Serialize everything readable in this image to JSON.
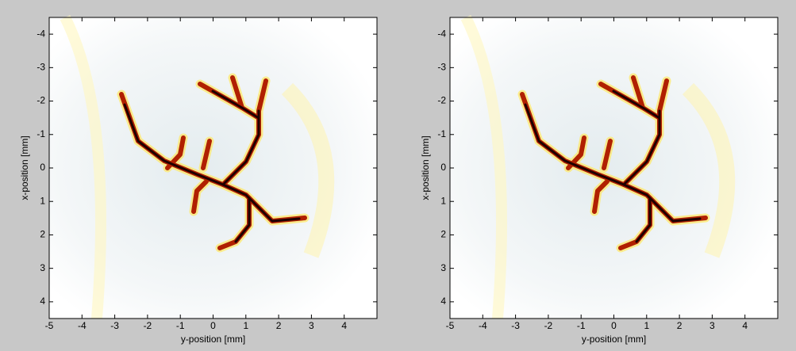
{
  "chart_data": [
    {
      "type": "image",
      "xlabel": "y-position [mm]",
      "ylabel": "x-position [mm]",
      "xlim": [
        -5,
        5
      ],
      "ylim": [
        -4.5,
        4.5
      ],
      "y_reversed": true,
      "xticks": [
        -5,
        -4,
        -3,
        -2,
        -1,
        0,
        1,
        2,
        3,
        4
      ],
      "yticks": [
        -4,
        -3,
        -2,
        -1,
        0,
        1,
        2,
        3,
        4
      ]
    },
    {
      "type": "image",
      "xlabel": "y-position [mm]",
      "ylabel": "x-position [mm]",
      "xlim": [
        -5,
        5
      ],
      "ylim": [
        -4.5,
        4.5
      ],
      "y_reversed": true,
      "xticks": [
        -5,
        -4,
        -3,
        -2,
        -1,
        0,
        1,
        2,
        3,
        4
      ],
      "yticks": [
        -4,
        -3,
        -2,
        -1,
        0,
        1,
        2,
        3,
        4
      ]
    }
  ]
}
